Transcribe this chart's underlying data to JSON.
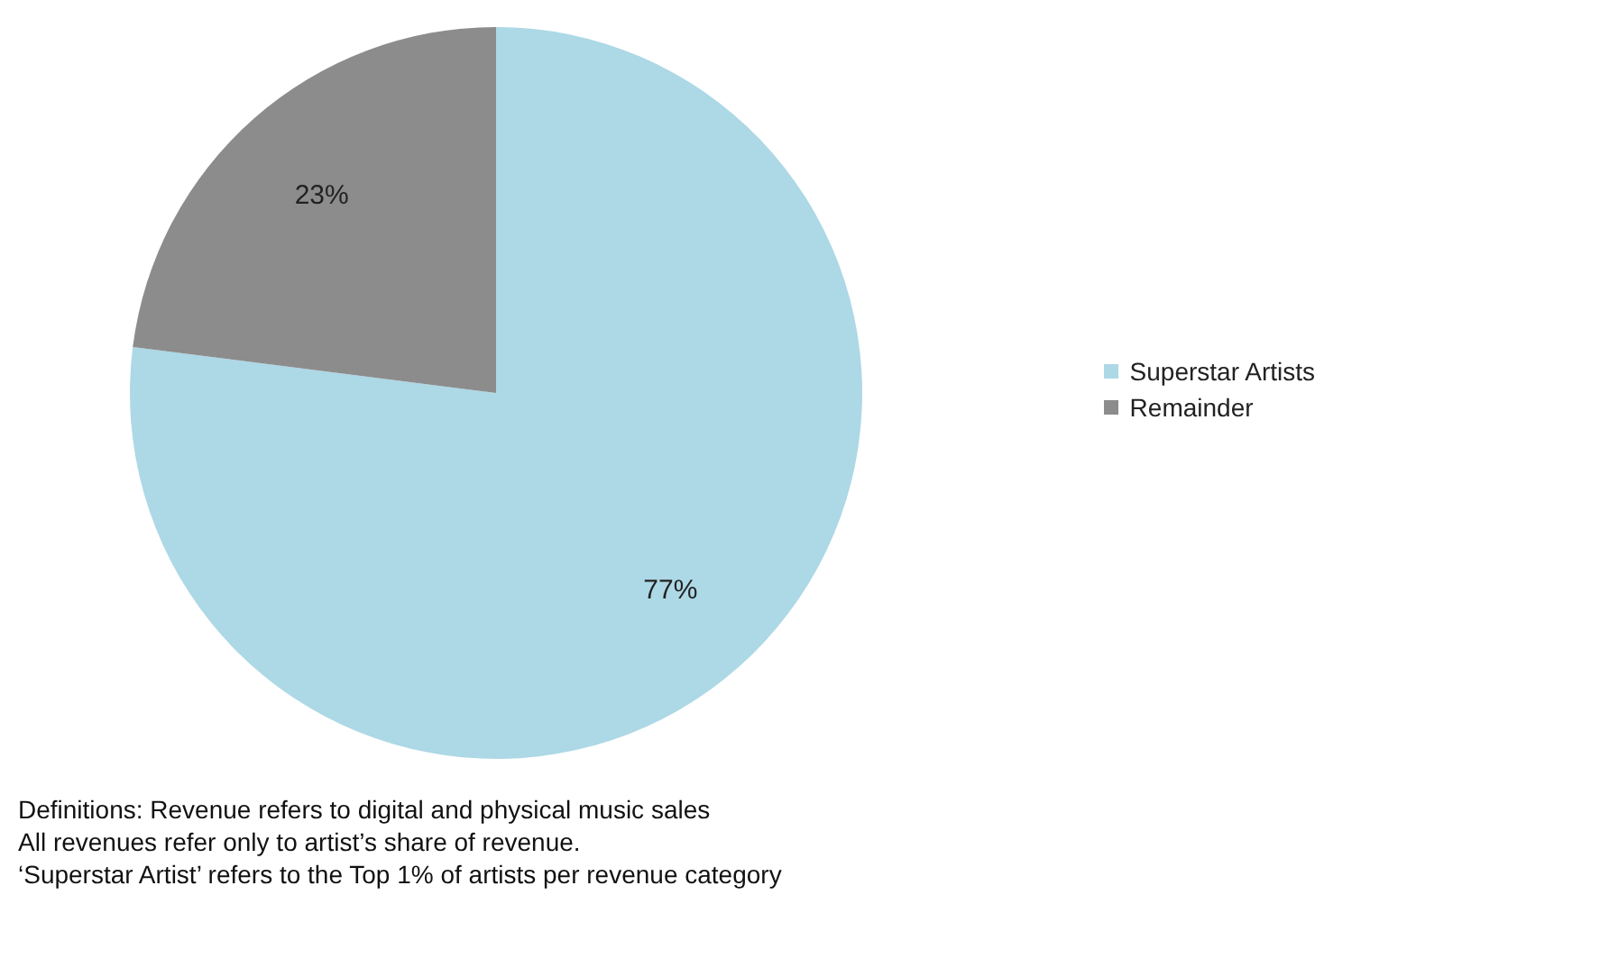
{
  "chart_data": {
    "type": "pie",
    "categories": [
      "Superstar Artists",
      "Remainder"
    ],
    "values": [
      77,
      23
    ],
    "colors": [
      "#add8e6",
      "#8c8c8c"
    ],
    "value_labels": [
      "77%",
      "23%"
    ],
    "legend": "right",
    "annotations": [
      "Definitions: Revenue refers to digital and physical music sales",
      "All revenues refer only to artist’s share of revenue.",
      "‘Superstar Artist’ refers to the Top 1% of artists per revenue category"
    ]
  }
}
